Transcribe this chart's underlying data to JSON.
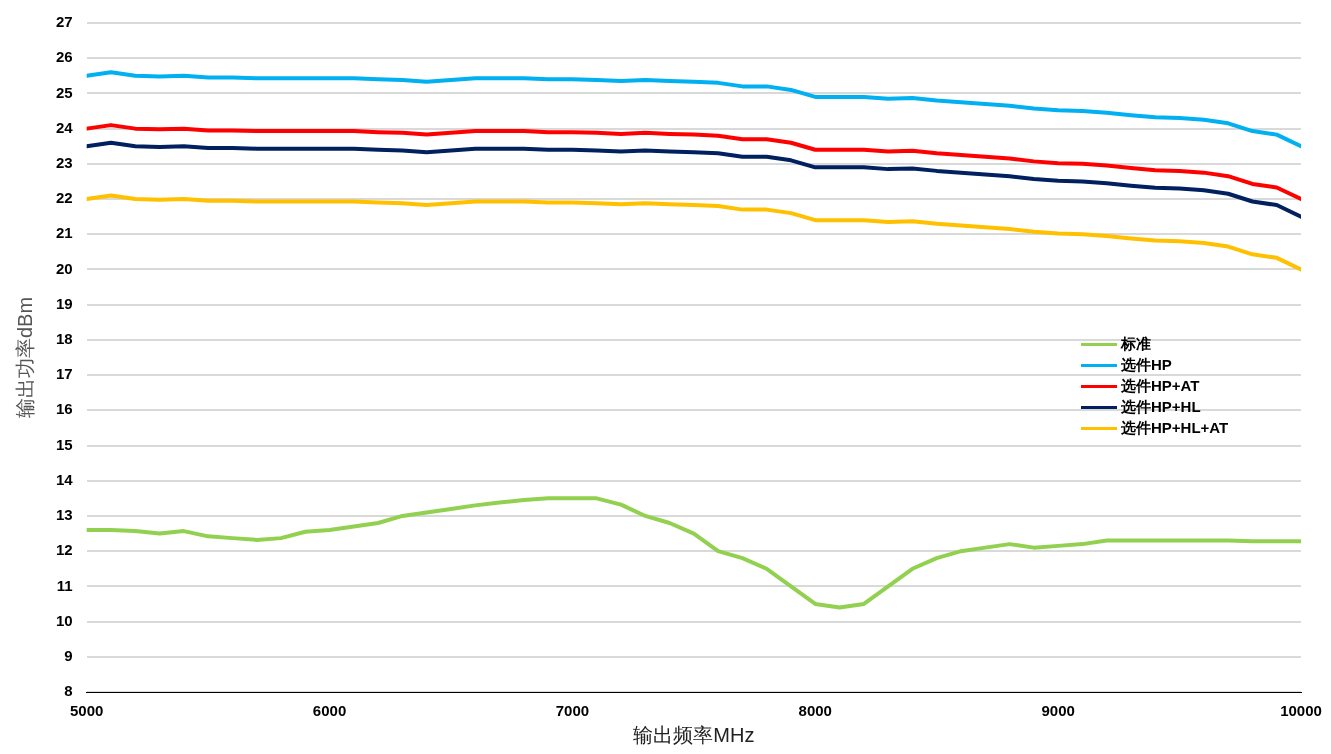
{
  "chart_data": {
    "type": "line",
    "xlabel": "输出频率MHz",
    "ylabel": "输出功率dBm",
    "x": [
      5000,
      5100,
      5200,
      5300,
      5400,
      5500,
      5600,
      5700,
      5800,
      5900,
      6000,
      6100,
      6200,
      6300,
      6400,
      6500,
      6600,
      6700,
      6800,
      6900,
      7000,
      7100,
      7200,
      7300,
      7400,
      7500,
      7600,
      7700,
      7800,
      7900,
      8000,
      8100,
      8200,
      8300,
      8400,
      8500,
      8600,
      8700,
      8800,
      8900,
      9000,
      9100,
      9200,
      9300,
      9400,
      9500,
      9600,
      9700,
      9800,
      9900,
      10000
    ],
    "series": [
      {
        "name": "标准",
        "color": "#92d050",
        "values": [
          12.6,
          12.6,
          12.57,
          12.5,
          12.57,
          12.42,
          12.37,
          12.32,
          12.37,
          12.55,
          12.6,
          12.7,
          12.8,
          13.0,
          13.1,
          13.2,
          13.3,
          13.38,
          13.45,
          13.5,
          13.5,
          13.5,
          13.32,
          13.0,
          12.8,
          12.5,
          12.0,
          11.8,
          11.5,
          11.0,
          10.5,
          10.4,
          10.5,
          11.0,
          11.5,
          11.8,
          12.0,
          12.1,
          12.2,
          12.1,
          12.15,
          12.2,
          12.3,
          12.3,
          12.3,
          12.3,
          12.3,
          12.3,
          12.28,
          12.28,
          12.28
        ]
      },
      {
        "name": "选件HP",
        "color": "#00b0f0",
        "values": [
          25.5,
          25.6,
          25.5,
          25.48,
          25.5,
          25.45,
          25.45,
          25.43,
          25.43,
          25.43,
          25.43,
          25.43,
          25.4,
          25.38,
          25.33,
          25.38,
          25.43,
          25.43,
          25.43,
          25.4,
          25.4,
          25.38,
          25.35,
          25.38,
          25.35,
          25.33,
          25.3,
          25.2,
          25.2,
          25.1,
          24.9,
          24.9,
          24.9,
          24.85,
          24.87,
          24.8,
          24.75,
          24.7,
          24.65,
          24.57,
          24.52,
          24.5,
          24.45,
          24.38,
          24.32,
          24.3,
          24.25,
          24.15,
          23.93,
          23.83,
          23.5
        ]
      },
      {
        "name": "选件HP+AT",
        "color": "#ff0000",
        "values": [
          24.0,
          24.1,
          24.0,
          23.98,
          24.0,
          23.95,
          23.95,
          23.93,
          23.93,
          23.93,
          23.93,
          23.93,
          23.9,
          23.88,
          23.83,
          23.88,
          23.93,
          23.93,
          23.93,
          23.9,
          23.9,
          23.88,
          23.85,
          23.88,
          23.85,
          23.83,
          23.8,
          23.7,
          23.7,
          23.6,
          23.4,
          23.4,
          23.4,
          23.35,
          23.37,
          23.3,
          23.25,
          23.2,
          23.15,
          23.07,
          23.02,
          23.0,
          22.95,
          22.88,
          22.82,
          22.8,
          22.75,
          22.65,
          22.43,
          22.33,
          22.0
        ]
      },
      {
        "name": "选件HP+HL",
        "color": "#002060",
        "values": [
          23.5,
          23.6,
          23.5,
          23.48,
          23.5,
          23.45,
          23.45,
          23.43,
          23.43,
          23.43,
          23.43,
          23.43,
          23.4,
          23.38,
          23.33,
          23.38,
          23.43,
          23.43,
          23.43,
          23.4,
          23.4,
          23.38,
          23.35,
          23.38,
          23.35,
          23.33,
          23.3,
          23.2,
          23.2,
          23.1,
          22.9,
          22.9,
          22.9,
          22.85,
          22.87,
          22.8,
          22.75,
          22.7,
          22.65,
          22.57,
          22.52,
          22.5,
          22.45,
          22.38,
          22.32,
          22.3,
          22.25,
          22.15,
          21.93,
          21.83,
          21.5
        ]
      },
      {
        "name": "选件HP+HL+AT",
        "color": "#ffc000",
        "values": [
          22.0,
          22.1,
          22.0,
          21.98,
          22.0,
          21.95,
          21.95,
          21.93,
          21.93,
          21.93,
          21.93,
          21.93,
          21.9,
          21.88,
          21.83,
          21.88,
          21.93,
          21.93,
          21.93,
          21.9,
          21.9,
          21.88,
          21.85,
          21.88,
          21.85,
          21.83,
          21.8,
          21.7,
          21.7,
          21.6,
          21.4,
          21.4,
          21.4,
          21.35,
          21.37,
          21.3,
          21.25,
          21.2,
          21.15,
          21.07,
          21.02,
          21.0,
          20.95,
          20.88,
          20.82,
          20.8,
          20.75,
          20.65,
          20.43,
          20.33,
          20.0
        ]
      }
    ],
    "xlim": [
      5000,
      10000
    ],
    "xticks": [
      5000,
      6000,
      7000,
      8000,
      9000,
      10000
    ],
    "ylim": [
      8,
      27
    ],
    "yticks": [
      8,
      9,
      10,
      11,
      12,
      13,
      14,
      15,
      16,
      17,
      18,
      19,
      20,
      21,
      22,
      23,
      24,
      25,
      26,
      27
    ],
    "grid": "y",
    "legend": "right",
    "marker": "none",
    "line_style": "solid"
  }
}
